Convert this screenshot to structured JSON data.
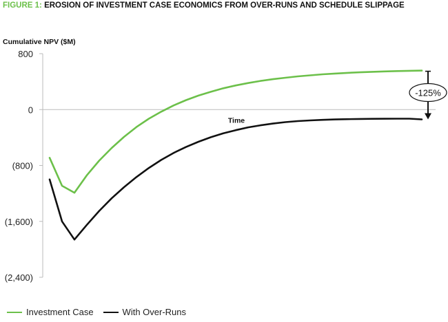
{
  "figure": {
    "number_label": "FIGURE 1:",
    "title": "EROSION OF INVESTMENT CASE ECONOMICS FROM OVER-RUNS AND SCHEDULE SLIPPAGE"
  },
  "colors": {
    "accent_green": "#6cc04a",
    "series_black": "#111111",
    "axis_gray": "#bbbbbb"
  },
  "chart_data": {
    "type": "line",
    "ylabel": "Cumulative NPV ($M)",
    "xlabel": "Time",
    "ylim": [
      -2400,
      800
    ],
    "yticks": [
      800,
      0,
      -800,
      -1600,
      -2400
    ],
    "ytick_labels": [
      "800",
      "0",
      "(800)",
      "(1,600)",
      "(2,400)"
    ],
    "x_ticks_shown": false,
    "grid": false,
    "legend_position": "bottom-left",
    "series": [
      {
        "name": "Investment Case",
        "color": "#6cc04a",
        "x": [
          0,
          1,
          2,
          3,
          4,
          5,
          6,
          7,
          8,
          9,
          10,
          11,
          12,
          13,
          14,
          15,
          16,
          17,
          18,
          19,
          20,
          21,
          22,
          23,
          24,
          25,
          26,
          27,
          28,
          29,
          30
        ],
        "values": [
          -690,
          -1090,
          -1190,
          -940,
          -730,
          -550,
          -390,
          -250,
          -130,
          -30,
          60,
          135,
          200,
          255,
          305,
          345,
          380,
          410,
          435,
          455,
          475,
          490,
          505,
          515,
          525,
          533,
          540,
          546,
          551,
          555,
          558
        ]
      },
      {
        "name": "With Over-Runs",
        "color": "#111111",
        "x": [
          0,
          1,
          2,
          3,
          4,
          5,
          6,
          7,
          8,
          9,
          10,
          11,
          12,
          13,
          14,
          15,
          16,
          17,
          18,
          19,
          20,
          21,
          22,
          23,
          24,
          25,
          26,
          27,
          28,
          29,
          30
        ],
        "values": [
          -1000,
          -1600,
          -1860,
          -1650,
          -1450,
          -1270,
          -1110,
          -965,
          -835,
          -720,
          -620,
          -535,
          -460,
          -395,
          -340,
          -295,
          -255,
          -225,
          -200,
          -180,
          -165,
          -155,
          -147,
          -141,
          -137,
          -134,
          -132,
          -131,
          -130,
          -130,
          -140
        ]
      }
    ],
    "annotation": {
      "text": "-125%",
      "from_value": 558,
      "to_value": -140
    }
  }
}
